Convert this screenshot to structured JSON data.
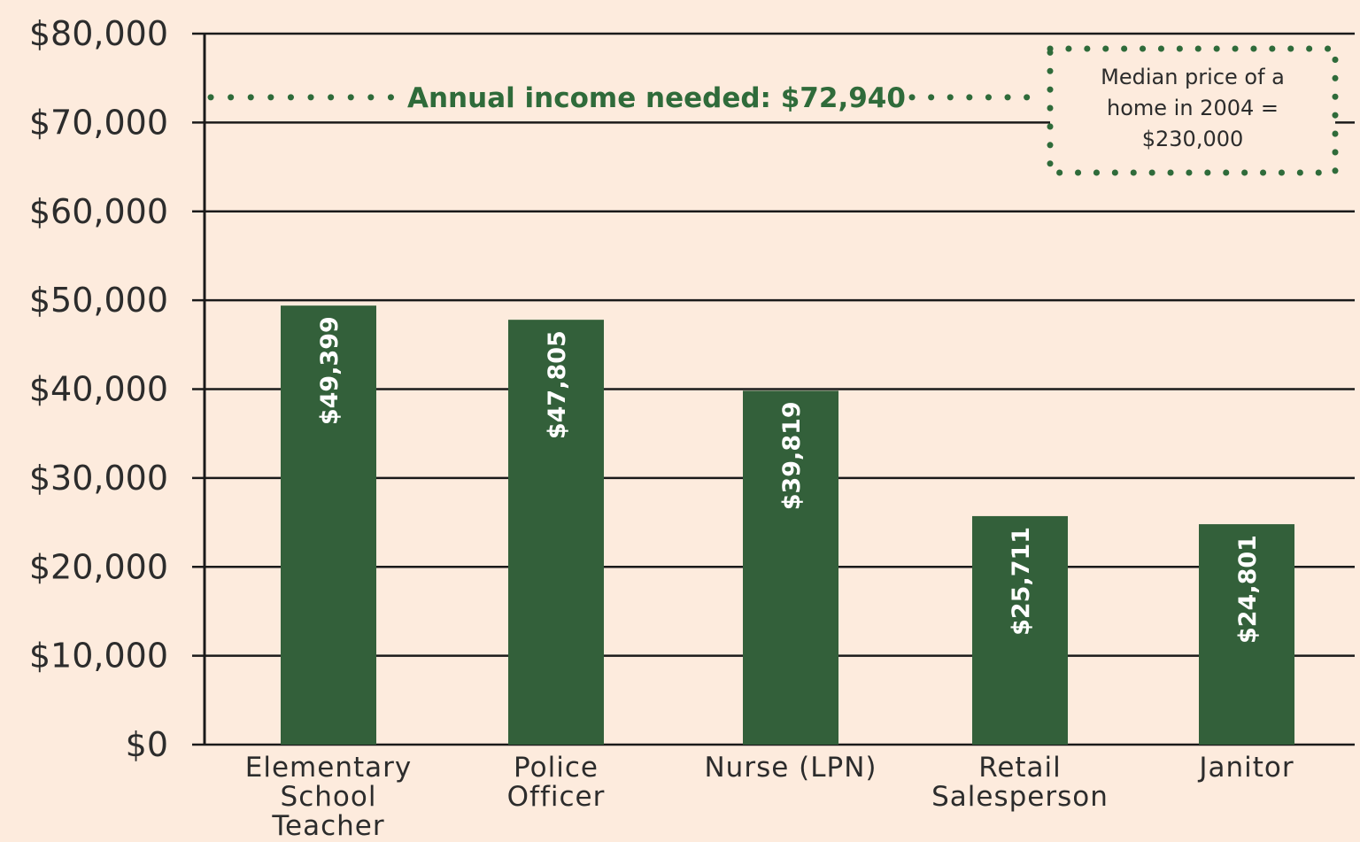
{
  "chart_data": {
    "type": "bar",
    "title": "",
    "xlabel": "",
    "ylabel": "",
    "categories": [
      "Elementary School Teacher",
      "Police Officer",
      "Nurse (LPN)",
      "Retail Salesperson",
      "Janitor"
    ],
    "category_lines": [
      [
        "Elementary",
        "School",
        "Teacher"
      ],
      [
        "Police",
        "Officer"
      ],
      [
        "Nurse (LPN)"
      ],
      [
        "Retail",
        "Salesperson"
      ],
      [
        "Janitor"
      ]
    ],
    "values": [
      49399,
      47805,
      39819,
      25711,
      24801
    ],
    "data_labels": [
      "$49,399",
      "$47,805",
      "$39,819",
      "$25,711",
      "$24,801"
    ],
    "ylim": [
      0,
      80000
    ],
    "yticks": [
      0,
      10000,
      20000,
      30000,
      40000,
      50000,
      60000,
      70000,
      80000
    ],
    "ytick_labels": [
      "$0",
      "$10,000",
      "$20,000",
      "$30,000",
      "$40,000",
      "$50,000",
      "$60,000",
      "$70,000",
      "$80,000"
    ],
    "grid": true,
    "reference_line": {
      "value": 72940,
      "label": "Annual income needed: $72,940",
      "style": "dotted"
    },
    "note": {
      "lines": [
        "Median price of a",
        "home in 2004 =",
        "$230,000"
      ],
      "placement": "top-right",
      "border": "dotted"
    },
    "colors": {
      "bar": "#33603a",
      "annotation": "#2f6b3a",
      "background": "#fdebdd",
      "grid": "#1a1a1a"
    }
  }
}
